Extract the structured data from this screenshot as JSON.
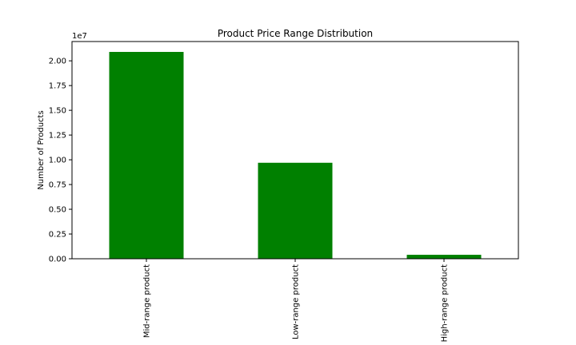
{
  "chart_data": {
    "type": "bar",
    "title": "Product Price Range Distribution",
    "xlabel": "",
    "ylabel": "Number of Products",
    "offset_label": "1e7",
    "categories": [
      "Mid-range product",
      "Low-range product",
      "High-range product"
    ],
    "values": [
      20900000,
      9700000,
      400000
    ],
    "ylim": [
      0,
      21950000
    ],
    "yticks": [
      0,
      2500000,
      5000000,
      7500000,
      10000000,
      12500000,
      15000000,
      17500000,
      20000000
    ],
    "ytick_labels": [
      "0.00",
      "0.25",
      "0.50",
      "0.75",
      "1.00",
      "1.25",
      "1.50",
      "1.75",
      "2.00"
    ],
    "bar_color": "#008000",
    "grid": false,
    "legend": "none"
  }
}
